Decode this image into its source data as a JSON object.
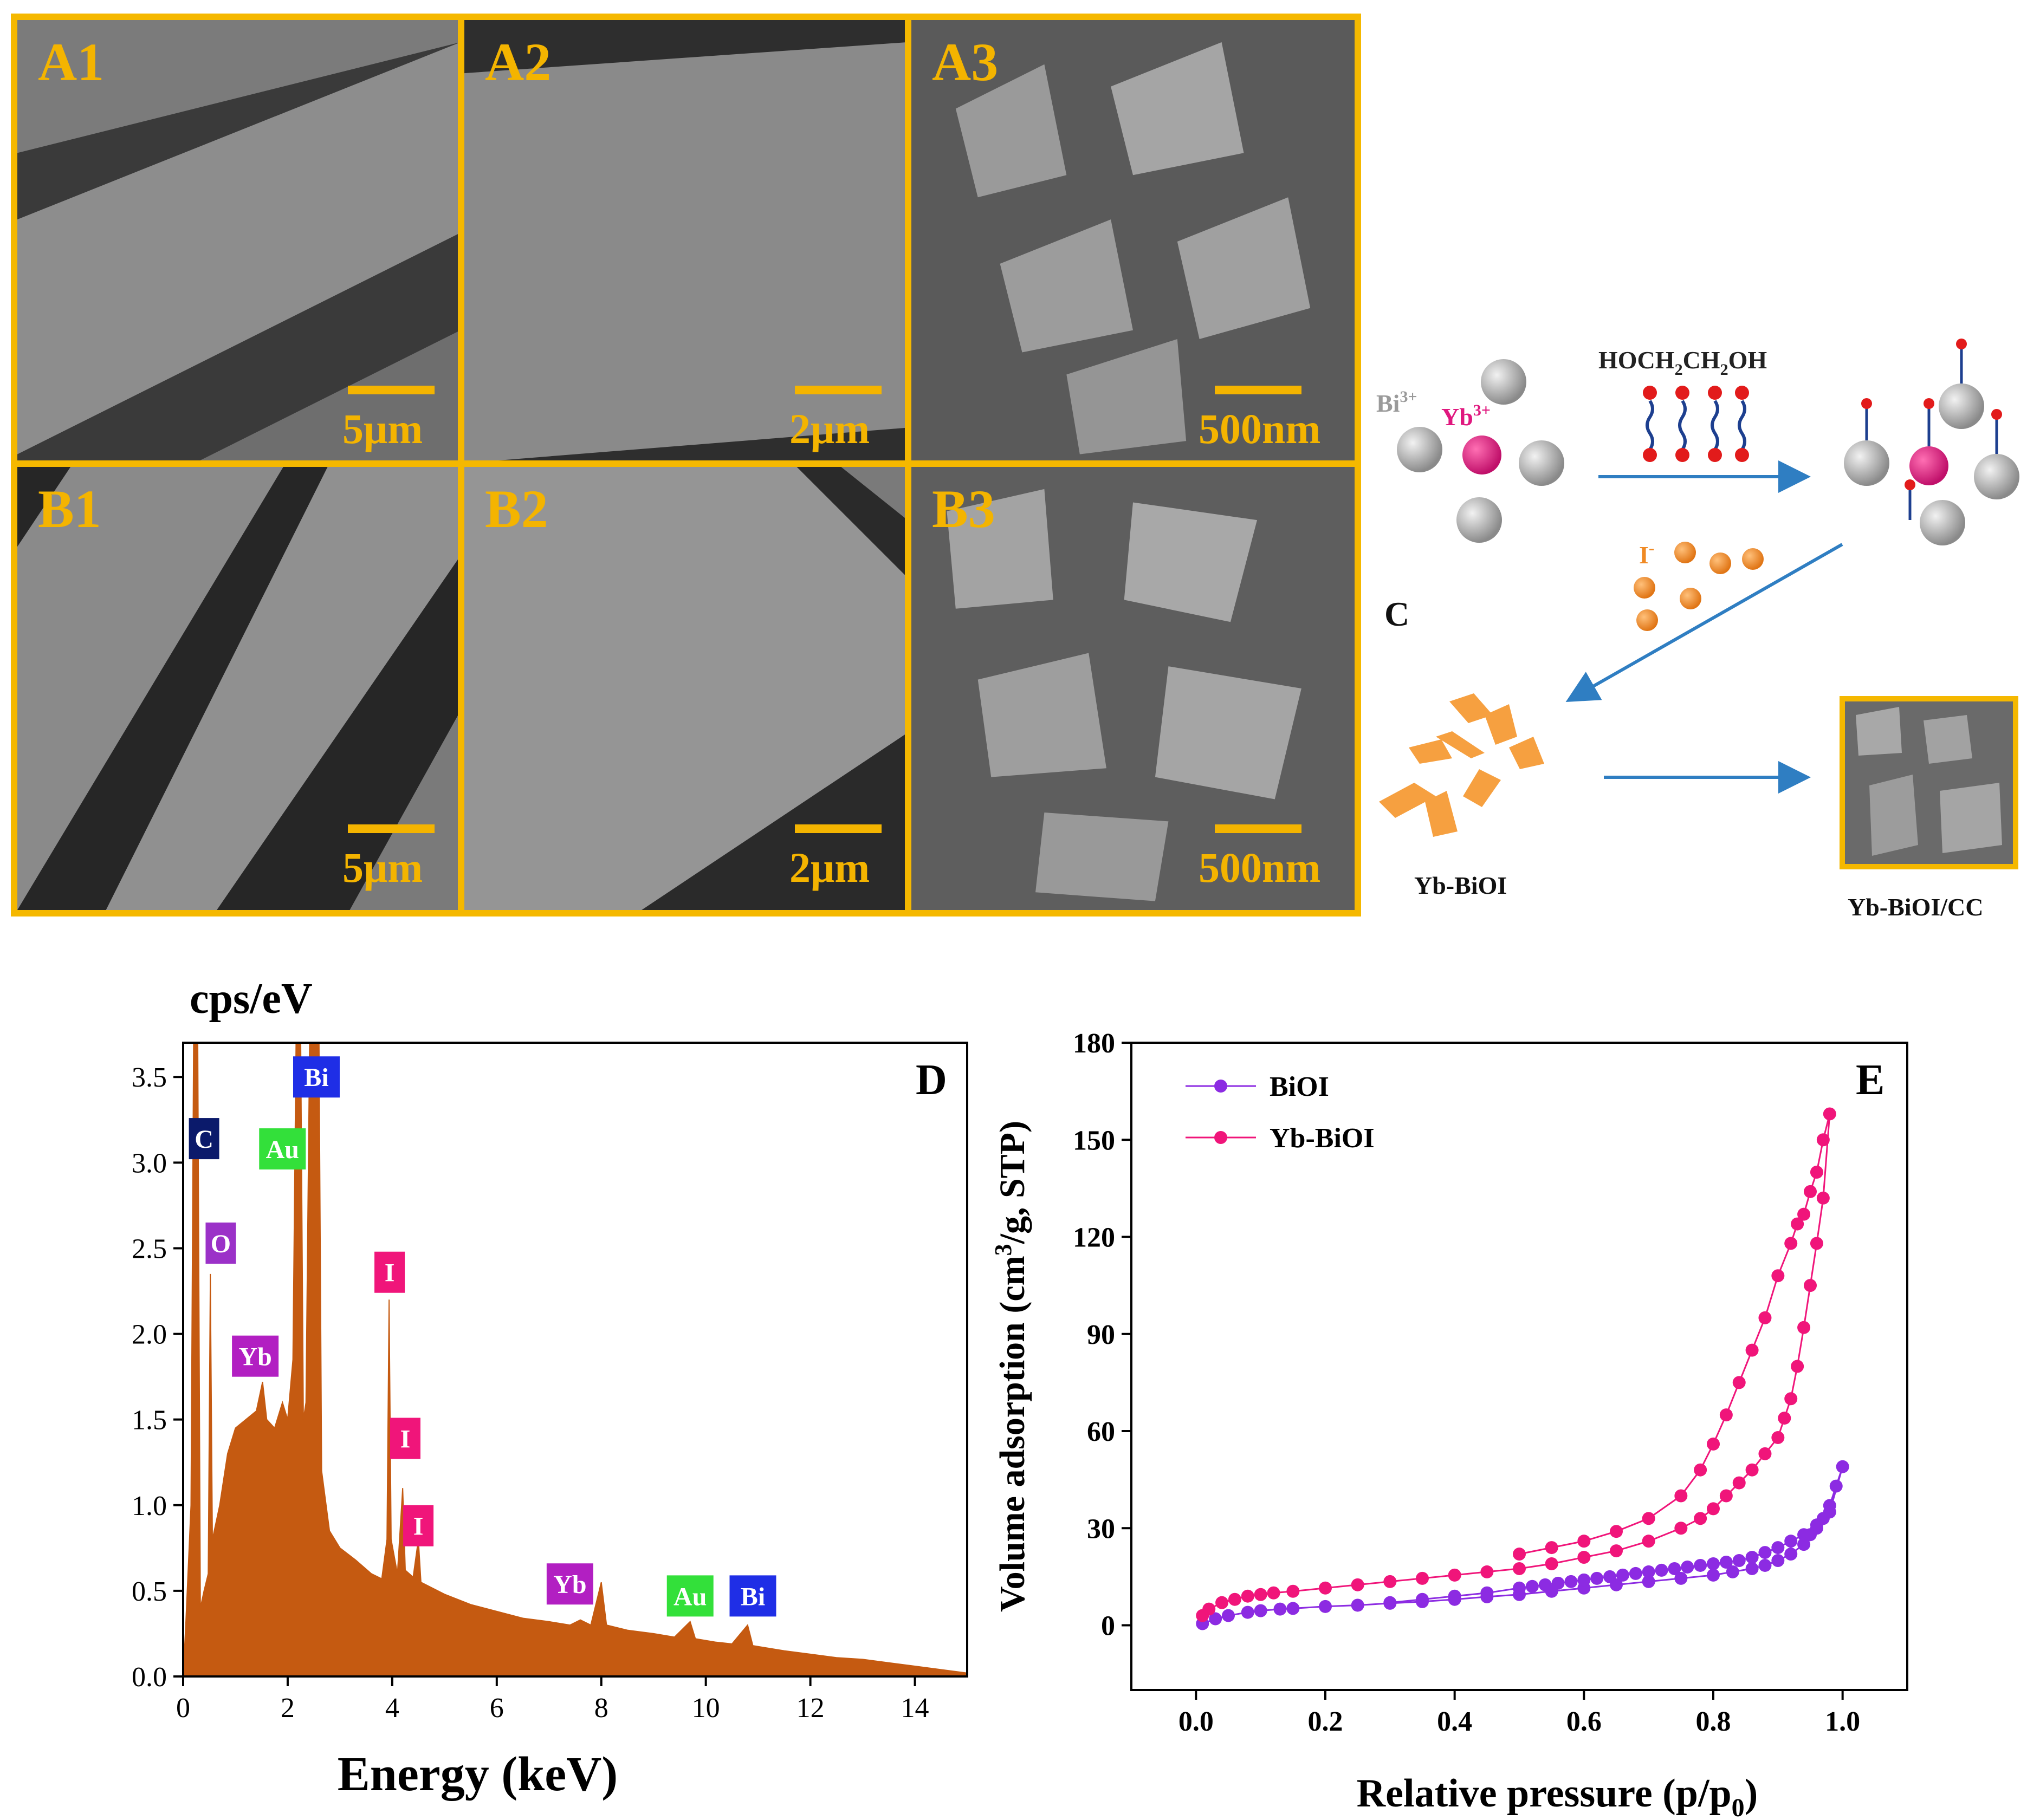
{
  "sem_panels": [
    {
      "label": "A1",
      "scale": "5μm"
    },
    {
      "label": "A2",
      "scale": "2μm"
    },
    {
      "label": "A3",
      "scale": "500nm"
    },
    {
      "label": "B1",
      "scale": "5μm"
    },
    {
      "label": "B2",
      "scale": "2μm"
    },
    {
      "label": "B3",
      "scale": "500nm"
    }
  ],
  "scheme": {
    "panel_label": "C",
    "ion_bi": "Bi",
    "ion_bi_charge": "3+",
    "ion_yb": "Yb",
    "ion_yb_charge": "3+",
    "reagent_main": "HOCH",
    "reagent_sub1": "2",
    "reagent_mid": "CH",
    "reagent_sub2": "2",
    "reagent_end": "OH",
    "iodide": "I",
    "iodide_charge": "-",
    "product1": "Yb-BiOI",
    "product2": "Yb-BiOI/CC",
    "colors": {
      "bi": "#a8a8a8",
      "yb": "#e0187f",
      "iodide": "#f08a24",
      "arrow": "#2f7ec2",
      "plate": "#f6a040"
    }
  },
  "chart_data": [
    {
      "type": "area",
      "panel_label": "D",
      "title": "",
      "ylabel": "cps/eV",
      "xlabel": "Energy (keV)",
      "xlim": [
        0,
        15
      ],
      "ylim": [
        0,
        3.7
      ],
      "x_ticks": [
        "0",
        "2",
        "4",
        "6",
        "8",
        "10",
        "12",
        "14"
      ],
      "y_ticks": [
        "0.0",
        "0.5",
        "1.0",
        "1.5",
        "2.0",
        "2.5",
        "3.0",
        "3.5"
      ],
      "color": "#c55a11",
      "spectrum": [
        [
          0.0,
          0.0
        ],
        [
          0.05,
          0.3
        ],
        [
          0.15,
          1.0
        ],
        [
          0.2,
          3.7
        ],
        [
          0.28,
          3.7
        ],
        [
          0.33,
          0.4
        ],
        [
          0.4,
          0.5
        ],
        [
          0.48,
          0.6
        ],
        [
          0.52,
          2.35
        ],
        [
          0.56,
          0.8
        ],
        [
          0.7,
          1.0
        ],
        [
          0.85,
          1.3
        ],
        [
          1.0,
          1.45
        ],
        [
          1.2,
          1.5
        ],
        [
          1.4,
          1.55
        ],
        [
          1.52,
          1.72
        ],
        [
          1.6,
          1.5
        ],
        [
          1.75,
          1.45
        ],
        [
          1.9,
          1.6
        ],
        [
          2.0,
          1.5
        ],
        [
          2.1,
          1.85
        ],
        [
          2.16,
          3.7
        ],
        [
          2.25,
          3.7
        ],
        [
          2.3,
          1.5
        ],
        [
          2.35,
          1.6
        ],
        [
          2.42,
          3.7
        ],
        [
          2.6,
          3.7
        ],
        [
          2.65,
          1.2
        ],
        [
          2.8,
          0.85
        ],
        [
          3.0,
          0.75
        ],
        [
          3.3,
          0.68
        ],
        [
          3.6,
          0.6
        ],
        [
          3.8,
          0.57
        ],
        [
          3.9,
          0.8
        ],
        [
          3.94,
          2.2
        ],
        [
          3.98,
          0.8
        ],
        [
          4.1,
          0.6
        ],
        [
          4.2,
          1.1
        ],
        [
          4.25,
          0.62
        ],
        [
          4.4,
          0.58
        ],
        [
          4.5,
          0.8
        ],
        [
          4.55,
          0.55
        ],
        [
          5.0,
          0.48
        ],
        [
          5.5,
          0.42
        ],
        [
          6.0,
          0.38
        ],
        [
          6.5,
          0.34
        ],
        [
          7.0,
          0.32
        ],
        [
          7.4,
          0.3
        ],
        [
          7.6,
          0.33
        ],
        [
          7.8,
          0.3
        ],
        [
          8.0,
          0.55
        ],
        [
          8.1,
          0.3
        ],
        [
          8.5,
          0.27
        ],
        [
          9.0,
          0.25
        ],
        [
          9.4,
          0.23
        ],
        [
          9.7,
          0.32
        ],
        [
          9.8,
          0.22
        ],
        [
          10.2,
          0.2
        ],
        [
          10.5,
          0.19
        ],
        [
          10.8,
          0.3
        ],
        [
          10.9,
          0.18
        ],
        [
          11.5,
          0.15
        ],
        [
          12.0,
          0.13
        ],
        [
          12.5,
          0.11
        ],
        [
          13.0,
          0.1
        ],
        [
          13.5,
          0.08
        ],
        [
          14.0,
          0.06
        ],
        [
          14.5,
          0.04
        ],
        [
          15.0,
          0.02
        ]
      ],
      "annotations": [
        {
          "text": "C",
          "x": 0.4,
          "y": 3.14,
          "bg": "#0b1a6b",
          "fg": "#ffffff"
        },
        {
          "text": "Bi",
          "x": 2.55,
          "y": 3.5,
          "bg": "#1f2ee6",
          "fg": "#ffffff"
        },
        {
          "text": "Au",
          "x": 1.9,
          "y": 3.08,
          "bg": "#33e03a",
          "fg": "#ffffff"
        },
        {
          "text": "O",
          "x": 0.72,
          "y": 2.53,
          "bg": "#9b31c8",
          "fg": "#ffffff"
        },
        {
          "text": "Yb",
          "x": 1.38,
          "y": 1.87,
          "bg": "#b21fc2",
          "fg": "#ffffff"
        },
        {
          "text": "I",
          "x": 3.95,
          "y": 2.36,
          "bg": "#f0157a",
          "fg": "#ffffff"
        },
        {
          "text": "I",
          "x": 4.25,
          "y": 1.39,
          "bg": "#f0157a",
          "fg": "#ffffff"
        },
        {
          "text": "I",
          "x": 4.5,
          "y": 0.88,
          "bg": "#f0157a",
          "fg": "#ffffff"
        },
        {
          "text": "Yb",
          "x": 7.4,
          "y": 0.54,
          "bg": "#b21fc2",
          "fg": "#ffffff"
        },
        {
          "text": "Au",
          "x": 9.7,
          "y": 0.47,
          "bg": "#33e03a",
          "fg": "#ffffff"
        },
        {
          "text": "Bi",
          "x": 10.9,
          "y": 0.47,
          "bg": "#1f2ee6",
          "fg": "#ffffff"
        }
      ]
    },
    {
      "type": "line",
      "panel_label": "E",
      "title": "",
      "xlabel": "Relative pressure (p/p",
      "xlabel_sub": "0",
      "xlabel_end": ")",
      "ylabel": "Volume adsorption (cm",
      "ylabel_sup": "3",
      "ylabel_end": "/g, STP)",
      "xlim": [
        -0.1,
        1.1
      ],
      "ylim": [
        -20,
        180
      ],
      "x_ticks": [
        "0.0",
        "0.2",
        "0.4",
        "0.6",
        "0.8",
        "1.0"
      ],
      "y_ticks": [
        "0",
        "30",
        "60",
        "90",
        "120",
        "150",
        "180"
      ],
      "legend_position": "top-left",
      "series": [
        {
          "name": "BiOI",
          "color": "#8c2be2",
          "x": [
            0.01,
            0.03,
            0.05,
            0.08,
            0.1,
            0.13,
            0.15,
            0.2,
            0.25,
            0.3,
            0.35,
            0.4,
            0.45,
            0.5,
            0.55,
            0.6,
            0.65,
            0.7,
            0.75,
            0.8,
            0.83,
            0.86,
            0.88,
            0.9,
            0.92,
            0.94,
            0.95,
            0.96,
            0.97,
            0.98,
            0.99,
            1.0,
            0.98,
            0.96,
            0.94,
            0.92,
            0.9,
            0.88,
            0.86,
            0.84,
            0.82,
            0.8,
            0.78,
            0.76,
            0.74,
            0.72,
            0.7,
            0.68,
            0.66,
            0.64,
            0.62,
            0.6,
            0.58,
            0.56,
            0.54,
            0.52,
            0.5,
            0.45,
            0.4,
            0.35,
            0.3
          ],
          "y": [
            0.5,
            2,
            3,
            4,
            4.5,
            5,
            5.2,
            5.8,
            6.2,
            6.8,
            7.3,
            8,
            8.8,
            9.5,
            10.5,
            11.5,
            12.5,
            13.5,
            14.5,
            15.5,
            16.5,
            17.5,
            18.5,
            20,
            22,
            25,
            28,
            30,
            33,
            37,
            43,
            49,
            35,
            31,
            28,
            26,
            24,
            22.5,
            21,
            20,
            19.5,
            19,
            18.5,
            18,
            17.5,
            17,
            16.5,
            16,
            15.5,
            15,
            14.5,
            14,
            13.5,
            13,
            12.5,
            12,
            11.5,
            10,
            9,
            8,
            7
          ]
        },
        {
          "name": "Yb-BiOI",
          "color": "#f0157a",
          "x": [
            0.01,
            0.02,
            0.04,
            0.06,
            0.08,
            0.1,
            0.12,
            0.15,
            0.2,
            0.25,
            0.3,
            0.35,
            0.4,
            0.45,
            0.5,
            0.55,
            0.6,
            0.65,
            0.7,
            0.75,
            0.78,
            0.8,
            0.82,
            0.84,
            0.86,
            0.88,
            0.9,
            0.91,
            0.92,
            0.93,
            0.94,
            0.95,
            0.96,
            0.97,
            0.98,
            0.97,
            0.96,
            0.95,
            0.94,
            0.93,
            0.92,
            0.9,
            0.88,
            0.86,
            0.84,
            0.82,
            0.8,
            0.78,
            0.75,
            0.7,
            0.65,
            0.6,
            0.55,
            0.5
          ],
          "y": [
            3,
            5,
            7,
            8,
            9,
            9.5,
            10,
            10.5,
            11.5,
            12.5,
            13.5,
            14.5,
            15.5,
            16.5,
            17.5,
            19,
            21,
            23,
            26,
            30,
            33,
            36,
            40,
            44,
            48,
            53,
            58,
            64,
            70,
            80,
            92,
            105,
            118,
            132,
            158,
            150,
            140,
            134,
            127,
            124,
            118,
            108,
            95,
            85,
            75,
            65,
            56,
            48,
            40,
            33,
            29,
            26,
            24,
            22
          ]
        }
      ]
    }
  ]
}
